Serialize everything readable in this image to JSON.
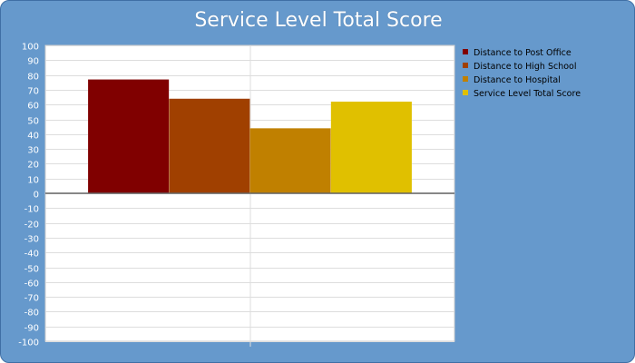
{
  "chart_data": {
    "type": "bar",
    "title": "Service Level Total Score",
    "xlabel": "",
    "ylabel": "",
    "ylim": [
      -100,
      100
    ],
    "ytick_step": 10,
    "grid": true,
    "legend_position": "right",
    "series": [
      {
        "name": "Distance to Post Office",
        "value": 77,
        "color": "#800000"
      },
      {
        "name": "Distance to High School",
        "value": 64,
        "color": "#a04000"
      },
      {
        "name": "Distance to Hospital",
        "value": 44,
        "color": "#c08000"
      },
      {
        "name": "Service Level Total Score",
        "value": 62,
        "color": "#e0c000"
      }
    ]
  }
}
